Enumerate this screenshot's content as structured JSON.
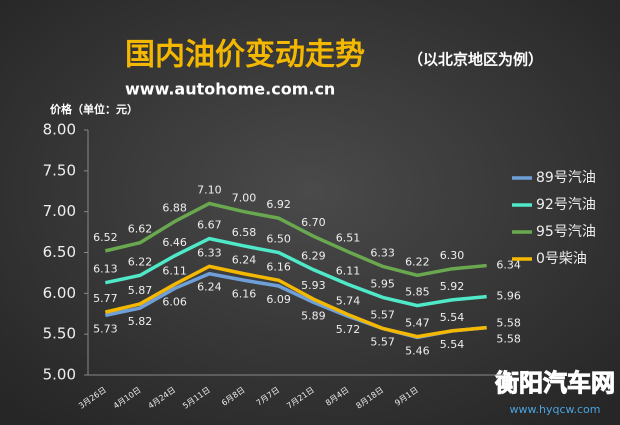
{
  "chart_data": {
    "type": "line",
    "title": "国内油价变动走势",
    "subtitle": "（以北京地区为例）",
    "source": "www.autohome.com.cn",
    "y_label": "价格（单位：元）",
    "watermark": [
      "衡阳汽车网",
      "www.hyqcw.com"
    ],
    "categories": [
      "3月26日",
      "4月10日",
      "4月24日",
      "5月11日",
      "6月8日",
      "7月7日",
      "7月21日",
      "8月4日",
      "8月18日",
      "9月1日",
      null,
      null
    ],
    "ylim": [
      5,
      8
    ],
    "yticks": [
      {
        "value": 5,
        "label": "5.00"
      },
      {
        "value": 5.5,
        "label": "5.50"
      },
      {
        "value": 6,
        "label": "6.00"
      },
      {
        "value": 6.5,
        "label": "6.50"
      },
      {
        "value": 7,
        "label": "7.00"
      },
      {
        "value": 7.5,
        "label": "7.50"
      },
      {
        "value": 8,
        "label": "8.00"
      }
    ],
    "grid": false,
    "legend": "right",
    "series": [
      {
        "name": "89号汽油",
        "color": "#6f9fd8",
        "values": [
          5.73,
          5.82,
          6.06,
          6.24,
          6.16,
          6.09,
          5.89,
          5.72,
          5.57,
          5.46,
          5.54,
          5.58
        ],
        "value_labels": [
          "5.73",
          "5.82",
          "6.06",
          "6.24",
          "6.16",
          "6.09",
          "5.89",
          "5.72",
          "5.57",
          "5.46",
          "5.54",
          "5.58"
        ]
      },
      {
        "name": "92号汽油",
        "color": "#4fe8c8",
        "values": [
          6.13,
          6.22,
          6.46,
          6.67,
          6.58,
          6.5,
          6.29,
          6.11,
          5.95,
          5.85,
          5.92,
          5.96
        ],
        "value_labels": [
          "6.13",
          "6.22",
          "6.46",
          "6.67",
          "6.58",
          "6.50",
          "6.29",
          "6.11",
          "5.95",
          "5.85",
          "5.92",
          "5.96"
        ]
      },
      {
        "name": "95号汽油",
        "color": "#6aa84f",
        "values": [
          6.52,
          6.62,
          6.88,
          7.1,
          7.0,
          6.92,
          6.7,
          6.51,
          6.33,
          6.22,
          6.3,
          6.34
        ],
        "value_labels": [
          "6.52",
          "6.62",
          "6.88",
          "7.10",
          "7.00",
          "6.92",
          "6.70",
          "6.51",
          "6.33",
          "6.22",
          "6.30",
          "6.34"
        ]
      },
      {
        "name": "0号柴油",
        "color": "#f5b800",
        "values": [
          5.77,
          5.87,
          6.11,
          6.33,
          6.24,
          6.16,
          5.93,
          5.74,
          5.57,
          5.47,
          5.54,
          5.58
        ],
        "value_labels": [
          "5.77",
          "5.87",
          "6.11",
          "6.33",
          "6.24",
          "6.16",
          "5.93",
          "5.74",
          "5.57",
          "5.47",
          "5.54",
          "5.58"
        ]
      }
    ]
  }
}
